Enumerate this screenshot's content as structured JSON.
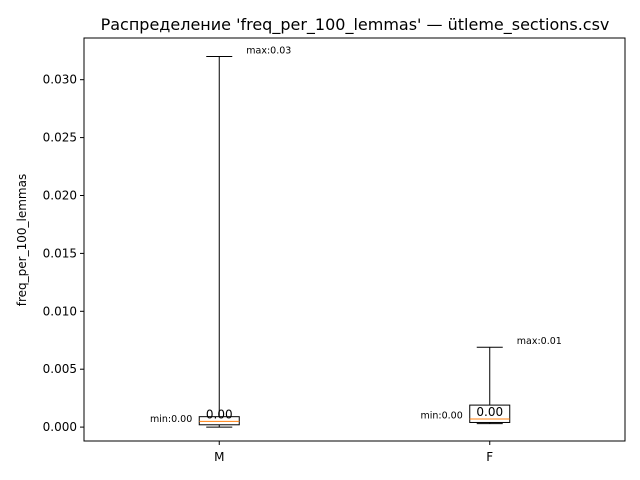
{
  "chart_data": {
    "type": "box",
    "title": "Распределение 'freq_per_100_lemmas' — ütleme_sections.csv",
    "xlabel": "",
    "ylabel": "freq_per_100_lemmas",
    "categories": [
      "M",
      "F"
    ],
    "boxes": [
      {
        "category": "M",
        "whislo": 0.0,
        "q1": 0.0002,
        "med": 0.0005,
        "q3": 0.0009,
        "whishi": 0.032,
        "min_label": "min:0.00",
        "max_label": "max:0.03",
        "median_label": "0.00"
      },
      {
        "category": "F",
        "whislo": 0.0003,
        "q1": 0.0004,
        "med": 0.0007,
        "q3": 0.0019,
        "whishi": 0.0069,
        "min_label": "min:0.00",
        "max_label": "max:0.01",
        "median_label": "0.00"
      }
    ],
    "y_ticks": [
      0.0,
      0.005,
      0.01,
      0.015,
      0.02,
      0.025,
      0.03
    ],
    "y_tick_labels": [
      "0.000",
      "0.005",
      "0.010",
      "0.015",
      "0.020",
      "0.025",
      "0.030"
    ],
    "ylim": [
      -0.0012,
      0.0336
    ],
    "grid": false,
    "colors": {
      "box": "#000000",
      "median": "#ff7f0e",
      "whisker": "#000000"
    }
  }
}
